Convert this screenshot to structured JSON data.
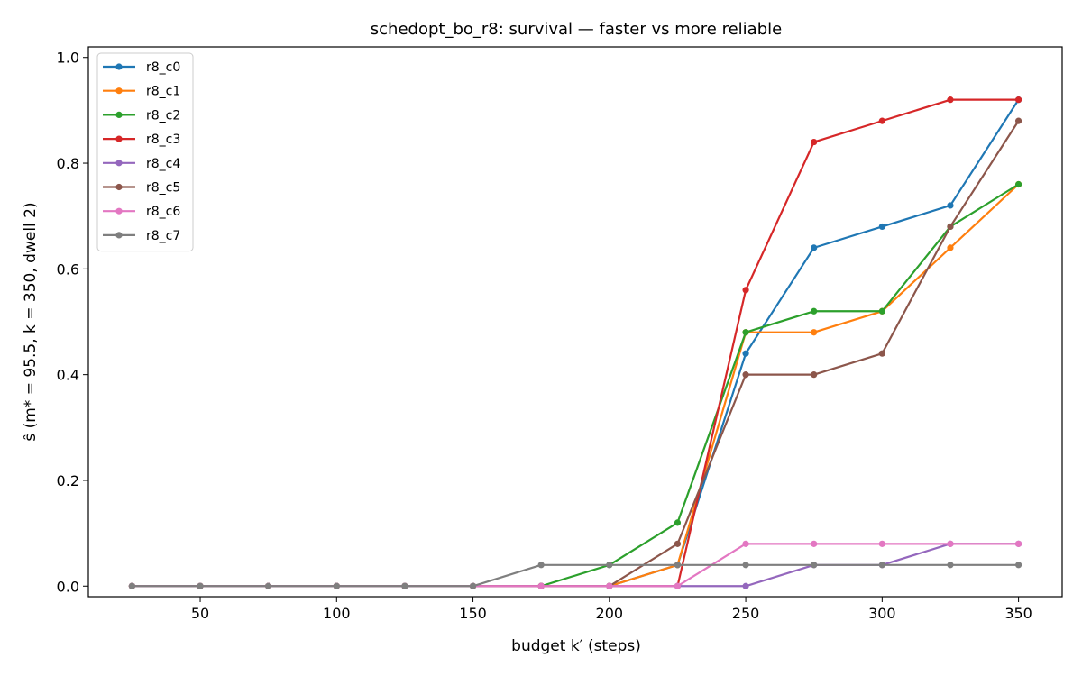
{
  "chart_data": {
    "type": "line",
    "title": "schedopt_bo_r8: survival — faster vs more reliable",
    "xlabel": "budget k′ (steps)",
    "ylabel": "ŝ (m* = 95.5, k = 350, dwell 2)",
    "xlim": [
      9,
      366
    ],
    "ylim": [
      -0.02,
      1.02
    ],
    "xticks": [
      50,
      100,
      150,
      200,
      250,
      300,
      350
    ],
    "yticks": [
      0.0,
      0.2,
      0.4,
      0.6,
      0.8,
      1.0
    ],
    "ytick_labels": [
      "0.0",
      "0.2",
      "0.4",
      "0.6",
      "0.8",
      "1.0"
    ],
    "grid": false,
    "legend_position": "top-left",
    "x": [
      25,
      50,
      75,
      100,
      125,
      150,
      175,
      200,
      225,
      250,
      275,
      300,
      325,
      350
    ],
    "series": [
      {
        "name": "r8_c0",
        "color": "#1f77b4",
        "values": [
          0,
          0,
          0,
          0,
          0,
          0,
          0,
          0,
          0.04,
          0.44,
          0.64,
          0.68,
          0.72,
          0.92
        ]
      },
      {
        "name": "r8_c1",
        "color": "#ff7f0e",
        "values": [
          0,
          0,
          0,
          0,
          0,
          0,
          0,
          0,
          0.04,
          0.48,
          0.48,
          0.52,
          0.64,
          0.76
        ]
      },
      {
        "name": "r8_c2",
        "color": "#2ca02c",
        "values": [
          0,
          0,
          0,
          0,
          0,
          0,
          0,
          0.04,
          0.12,
          0.48,
          0.52,
          0.52,
          0.68,
          0.76
        ]
      },
      {
        "name": "r8_c3",
        "color": "#d62728",
        "values": [
          0,
          0,
          0,
          0,
          0,
          0,
          0,
          0,
          0,
          0.56,
          0.84,
          0.88,
          0.92,
          0.92
        ]
      },
      {
        "name": "r8_c4",
        "color": "#9467bd",
        "values": [
          0,
          0,
          0,
          0,
          0,
          0,
          0,
          0,
          0,
          0,
          0.04,
          0.04,
          0.08,
          0.08
        ]
      },
      {
        "name": "r8_c5",
        "color": "#8c564b",
        "values": [
          0,
          0,
          0,
          0,
          0,
          0,
          0,
          0,
          0.08,
          0.4,
          0.4,
          0.44,
          0.68,
          0.88
        ]
      },
      {
        "name": "r8_c6",
        "color": "#e377c2",
        "values": [
          0,
          0,
          0,
          0,
          0,
          0,
          0,
          0,
          0,
          0.08,
          0.08,
          0.08,
          0.08,
          0.08
        ]
      },
      {
        "name": "r8_c7",
        "color": "#7f7f7f",
        "values": [
          0,
          0,
          0,
          0,
          0,
          0,
          0.04,
          0.04,
          0.04,
          0.04,
          0.04,
          0.04,
          0.04,
          0.04
        ]
      }
    ]
  }
}
